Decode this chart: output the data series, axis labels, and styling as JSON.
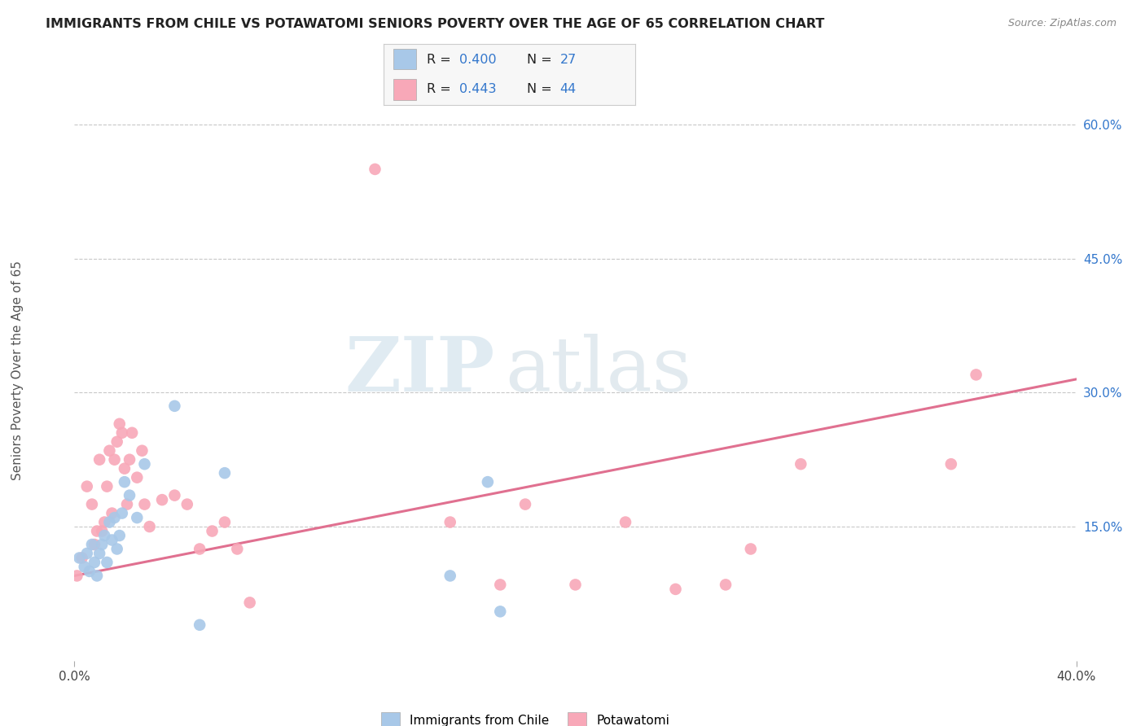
{
  "title": "IMMIGRANTS FROM CHILE VS POTAWATOMI SENIORS POVERTY OVER THE AGE OF 65 CORRELATION CHART",
  "source": "Source: ZipAtlas.com",
  "ylabel": "Seniors Poverty Over the Age of 65",
  "xlim": [
    0.0,
    0.4
  ],
  "ylim": [
    0.0,
    0.65
  ],
  "xticks": [
    0.0,
    0.4
  ],
  "xticklabels": [
    "0.0%",
    "40.0%"
  ],
  "yticks_right": [
    0.15,
    0.3,
    0.45,
    0.6
  ],
  "yticklabels_right": [
    "15.0%",
    "30.0%",
    "45.0%",
    "60.0%"
  ],
  "grid_color": "#c8c8c8",
  "background_color": "#ffffff",
  "watermark_zip": "ZIP",
  "watermark_atlas": "atlas",
  "legend_r1": "0.400",
  "legend_n1": "27",
  "legend_r2": "0.443",
  "legend_n2": "44",
  "legend_label1": "Immigrants from Chile",
  "legend_label2": "Potawatomi",
  "scatter_color1": "#a8c8e8",
  "scatter_color2": "#f8a8b8",
  "line_color": "#e07090",
  "title_color": "#222222",
  "stat_color": "#3377cc",
  "chile_points_x": [
    0.002,
    0.004,
    0.005,
    0.006,
    0.007,
    0.008,
    0.009,
    0.01,
    0.011,
    0.012,
    0.013,
    0.014,
    0.015,
    0.016,
    0.017,
    0.018,
    0.019,
    0.02,
    0.022,
    0.025,
    0.028,
    0.04,
    0.05,
    0.06,
    0.15,
    0.165,
    0.17
  ],
  "chile_points_y": [
    0.115,
    0.105,
    0.12,
    0.1,
    0.13,
    0.11,
    0.095,
    0.12,
    0.13,
    0.14,
    0.11,
    0.155,
    0.135,
    0.16,
    0.125,
    0.14,
    0.165,
    0.2,
    0.185,
    0.16,
    0.22,
    0.285,
    0.04,
    0.21,
    0.095,
    0.2,
    0.055
  ],
  "potawatomi_points_x": [
    0.001,
    0.003,
    0.005,
    0.007,
    0.008,
    0.009,
    0.01,
    0.011,
    0.012,
    0.013,
    0.014,
    0.015,
    0.016,
    0.017,
    0.018,
    0.019,
    0.02,
    0.021,
    0.022,
    0.023,
    0.025,
    0.027,
    0.028,
    0.03,
    0.035,
    0.04,
    0.045,
    0.05,
    0.055,
    0.06,
    0.065,
    0.07,
    0.12,
    0.15,
    0.17,
    0.18,
    0.2,
    0.22,
    0.24,
    0.26,
    0.27,
    0.29,
    0.35,
    0.36
  ],
  "potawatomi_points_y": [
    0.095,
    0.115,
    0.195,
    0.175,
    0.13,
    0.145,
    0.225,
    0.145,
    0.155,
    0.195,
    0.235,
    0.165,
    0.225,
    0.245,
    0.265,
    0.255,
    0.215,
    0.175,
    0.225,
    0.255,
    0.205,
    0.235,
    0.175,
    0.15,
    0.18,
    0.185,
    0.175,
    0.125,
    0.145,
    0.155,
    0.125,
    0.065,
    0.55,
    0.155,
    0.085,
    0.175,
    0.085,
    0.155,
    0.08,
    0.085,
    0.125,
    0.22,
    0.22,
    0.32
  ],
  "trendline_x": [
    0.0,
    0.4
  ],
  "trendline_y": [
    0.095,
    0.315
  ]
}
